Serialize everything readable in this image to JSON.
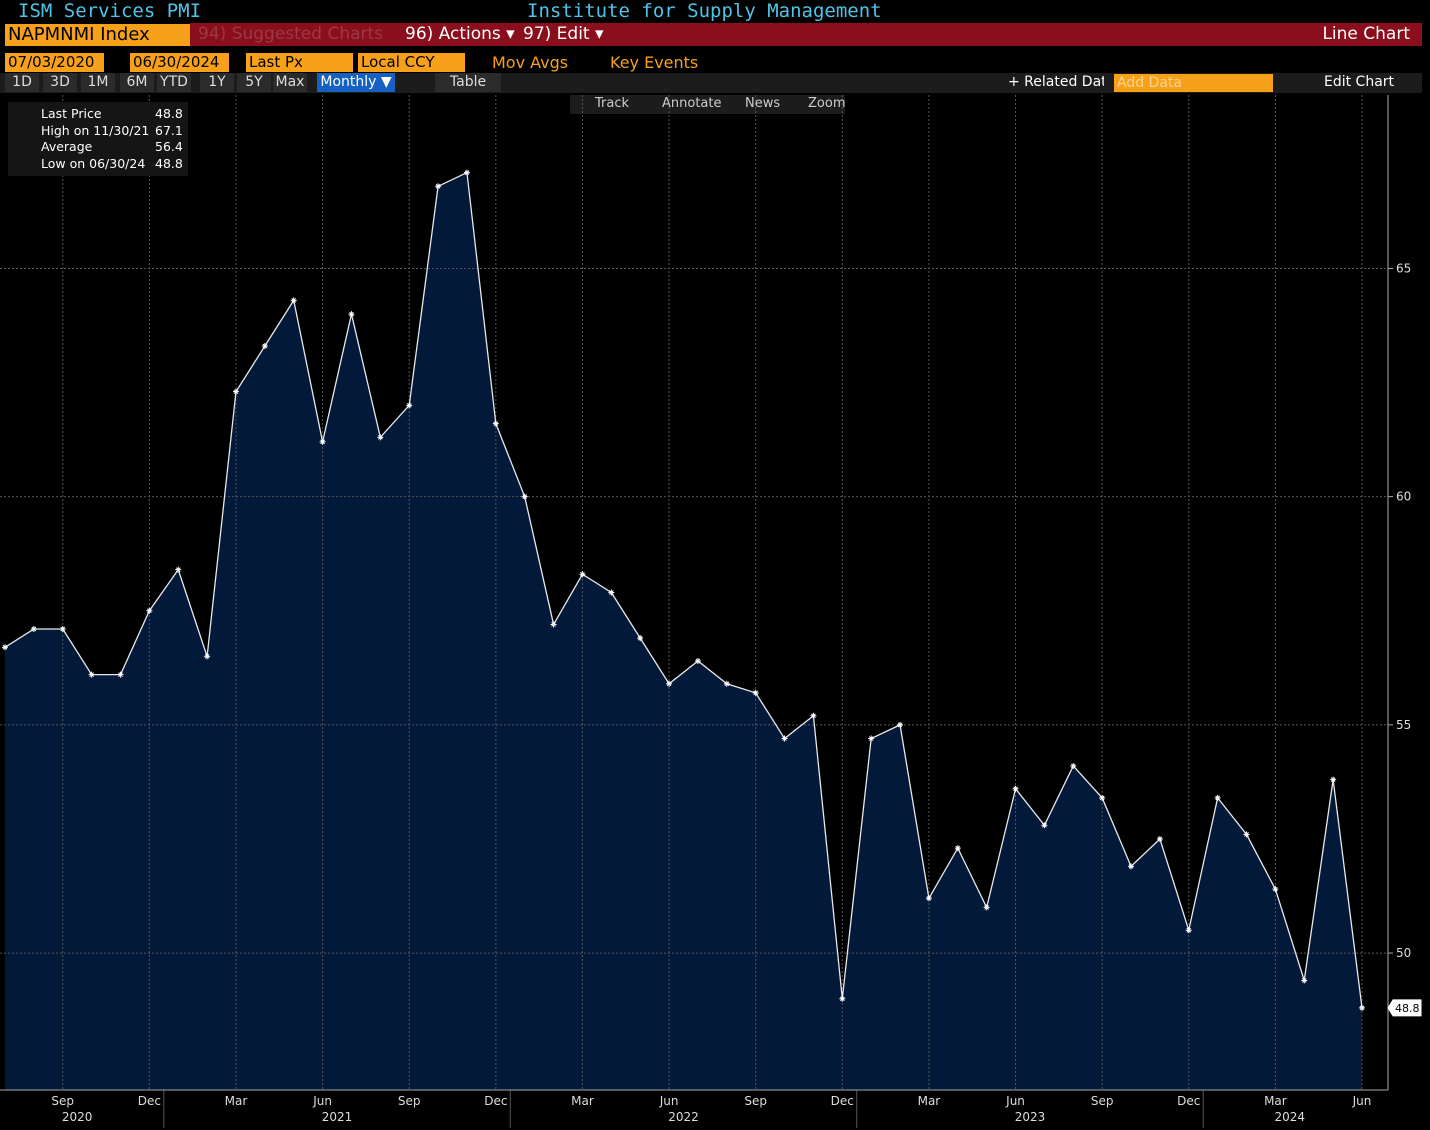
{
  "header": {
    "ticker_name": "ISM Services PMI",
    "source": "Institute for Supply Management",
    "security": "NAPMNMI Index",
    "menu": [
      "94) Suggested Charts",
      "96) Actions ▾",
      "97) Edit ▾"
    ],
    "chart_kind": "Line Chart"
  },
  "toolbar": {
    "start_date": "07/03/2020",
    "end_date": "06/30/2024",
    "field": "Last Px",
    "currency": "Local CCY",
    "mov_avgs": "Mov Avgs",
    "key_events": "Key Events",
    "ranges": [
      "1D",
      "3D",
      "1M",
      "6M",
      "YTD",
      "1Y",
      "5Y",
      "Max"
    ],
    "period": "Monthly ▼",
    "table": "Table",
    "related": "+ Related Data",
    "add_data": "Add Data",
    "edit_chart": "Edit Chart",
    "tools": [
      "Track",
      "Annotate",
      "News",
      "Zoom"
    ]
  },
  "legend": [
    {
      "label": "Last Price",
      "value": 48.8
    },
    {
      "label": "High on 11/30/21",
      "value": 67.1
    },
    {
      "label": "Average",
      "value": 56.4
    },
    {
      "label": "Low on 06/30/24",
      "value": 48.8
    }
  ],
  "chart_data": {
    "type": "area",
    "categories": [
      null,
      null,
      "Sep",
      null,
      null,
      "Dec",
      null,
      null,
      "Mar",
      null,
      null,
      "Jun",
      null,
      null,
      "Sep",
      null,
      null,
      "Dec",
      null,
      null,
      "Mar",
      null,
      null,
      "Jun",
      null,
      null,
      "Sep",
      null,
      null,
      "Dec",
      null,
      null,
      "Mar",
      null,
      null,
      "Jun",
      null,
      null,
      "Sep",
      null,
      null,
      "Dec",
      null,
      null,
      "Mar",
      null,
      null,
      "Jun"
    ],
    "years": [
      "2020",
      "2021",
      "2022",
      "2023",
      "2024"
    ],
    "series": [
      {
        "name": "Last Price",
        "color": "#e8e8e8",
        "fill": "#03193a",
        "values": [
          56.7,
          57.1,
          57.1,
          56.1,
          56.1,
          57.5,
          58.4,
          56.5,
          62.3,
          63.3,
          64.3,
          61.2,
          64.0,
          61.3,
          62.0,
          66.8,
          67.1,
          61.6,
          60.0,
          57.2,
          58.3,
          57.9,
          56.9,
          55.9,
          56.4,
          55.9,
          55.7,
          54.7,
          55.2,
          49.0,
          54.7,
          55.0,
          51.2,
          52.3,
          51.0,
          53.6,
          52.8,
          54.1,
          53.4,
          51.9,
          52.5,
          50.5,
          53.4,
          52.6,
          51.4,
          49.4,
          53.8,
          48.8
        ]
      }
    ],
    "ylim": [
      47,
      68.8
    ],
    "yticks": [
      50,
      55,
      60,
      65
    ],
    "grid": true
  }
}
